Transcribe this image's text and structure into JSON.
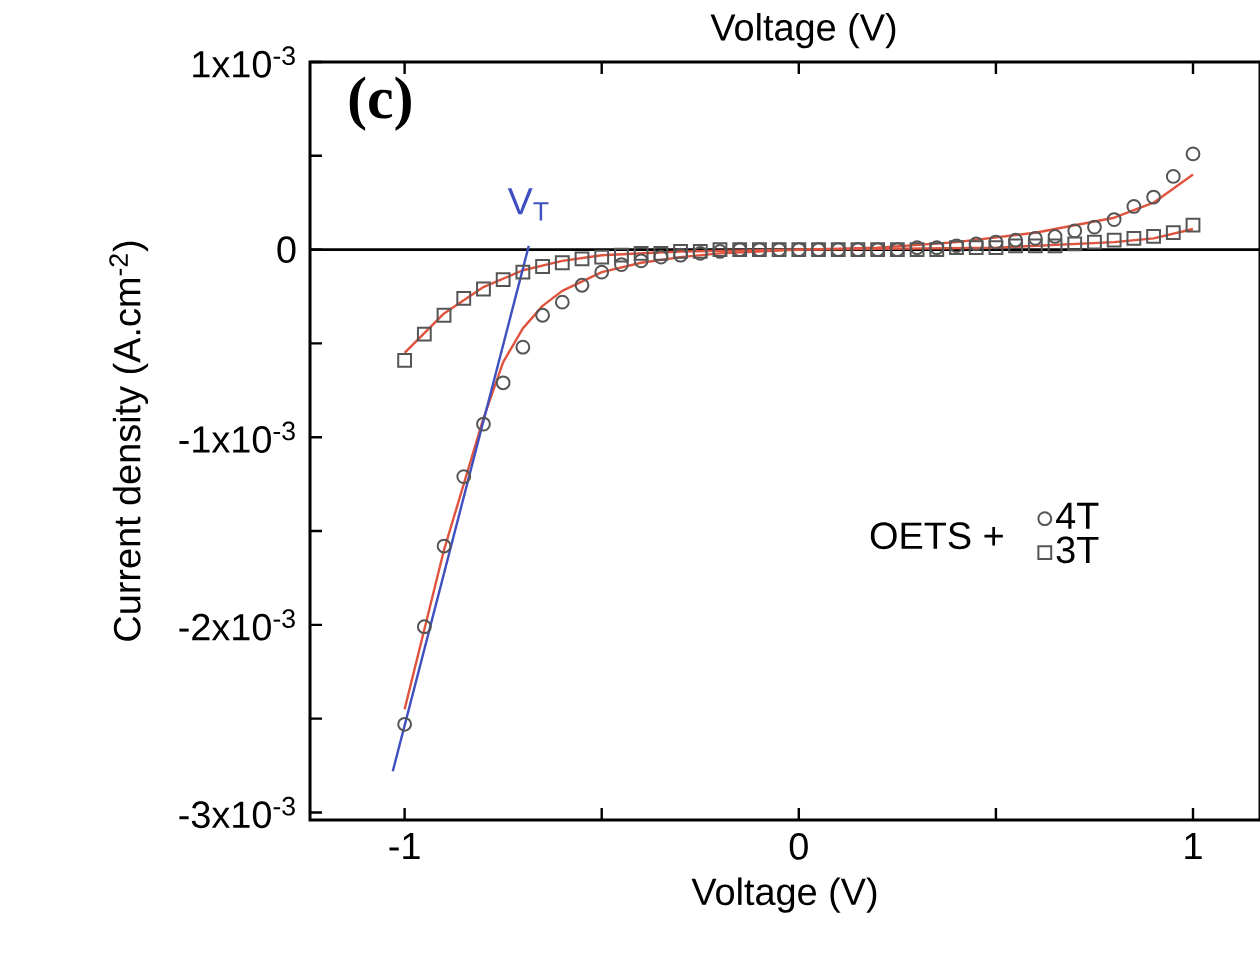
{
  "chart_data": {
    "type": "scatter",
    "xlabel": "Voltage (V)",
    "ylabel": "Current density (A.cm$^{-2}$)",
    "legend_title": "OETS +",
    "xlim": [
      -1.24,
      1.17
    ],
    "ylim": [
      -0.00304,
      0.001
    ],
    "xticks": [
      -1,
      {
        "value": -0.5,
        "label": null
      },
      0,
      {
        "value": 0.5,
        "label": null
      },
      1
    ],
    "yticks": [
      {
        "value": -0.003,
        "label": "-3x10$^{-3}$"
      },
      {
        "value": -0.0025,
        "label": null
      },
      {
        "value": -0.002,
        "label": "-2x10$^{-3}$"
      },
      {
        "value": -0.0015,
        "label": null
      },
      {
        "value": -0.001,
        "label": "-1x10$^{-3}$"
      },
      {
        "value": -0.0005,
        "label": null
      },
      0,
      {
        "value": 0.0005,
        "label": null
      },
      {
        "value": 0.001,
        "label": "1x10$^{-3}$"
      }
    ],
    "legend": "right",
    "grid": false,
    "ref_lines": [
      {
        "axis": "y",
        "value": 0,
        "color": "#000000"
      }
    ],
    "annotations": [
      "(c)",
      "Voltage (V)",
      {
        "text": "V$_{T}$",
        "x": -0.685,
        "y": 0
      }
    ],
    "series": [
      {
        "name": "4T",
        "marker": "circle",
        "color": "#555555",
        "x": [
          -1.0,
          -0.95,
          -0.9,
          -0.85,
          -0.8,
          -0.75,
          -0.7,
          -0.65,
          -0.6,
          -0.55,
          -0.5,
          -0.45,
          -0.4,
          -0.35,
          -0.3,
          -0.25,
          -0.2,
          -0.15,
          -0.1,
          -0.05,
          0.0,
          0.05,
          0.1,
          0.15,
          0.2,
          0.25,
          0.3,
          0.35,
          0.4,
          0.45,
          0.5,
          0.55,
          0.6,
          0.65,
          0.7,
          0.75,
          0.8,
          0.85,
          0.9,
          0.95,
          1.0
        ],
        "values": [
          -0.00253,
          -0.00201,
          -0.00158,
          -0.00121,
          -0.00093,
          -0.00071,
          -0.00052,
          -0.00035,
          -0.00028,
          -0.00019,
          -0.00012,
          -8e-05,
          -6e-05,
          -4e-05,
          -3e-05,
          -2e-05,
          -1e-05,
          0,
          0,
          0,
          0,
          0,
          0,
          0,
          0,
          0,
          1e-05,
          1e-05,
          2e-05,
          3e-05,
          4e-05,
          5e-05,
          6e-05,
          7e-05,
          0.0001,
          0.00012,
          0.00016,
          0.00023,
          0.00028,
          0.00039,
          0.00051
        ]
      },
      {
        "name": "3T",
        "marker": "square",
        "color": "#555555",
        "x": [
          -1.0,
          -0.95,
          -0.9,
          -0.85,
          -0.8,
          -0.75,
          -0.7,
          -0.65,
          -0.6,
          -0.55,
          -0.5,
          -0.45,
          -0.4,
          -0.35,
          -0.3,
          -0.25,
          -0.2,
          -0.15,
          -0.1,
          -0.05,
          0.0,
          0.05,
          0.1,
          0.15,
          0.2,
          0.25,
          0.3,
          0.35,
          0.4,
          0.45,
          0.5,
          0.55,
          0.6,
          0.65,
          0.7,
          0.75,
          0.8,
          0.85,
          0.9,
          0.95,
          1.0
        ],
        "values": [
          -0.00059,
          -0.00045,
          -0.00035,
          -0.00026,
          -0.00021,
          -0.00016,
          -0.00012,
          -9e-05,
          -7e-05,
          -5e-05,
          -4e-05,
          -3e-05,
          -2e-05,
          -2e-05,
          -1e-05,
          -1e-05,
          0,
          0,
          0,
          0,
          0,
          0,
          0,
          0,
          0,
          0,
          0,
          0,
          1e-05,
          1e-05,
          1e-05,
          2e-05,
          2e-05,
          2e-05,
          3e-05,
          4e-05,
          5e-05,
          6e-05,
          7e-05,
          9e-05,
          0.00013
        ]
      },
      {
        "type": "line",
        "marker": "none",
        "color": "#e0533f",
        "x": [
          -1.0,
          -0.9,
          -0.8,
          -0.75,
          -0.7,
          -0.65,
          -0.6,
          -0.5,
          -0.4,
          -0.3,
          -0.2,
          0.0,
          0.2,
          0.4,
          0.6,
          0.8,
          0.9,
          1.0
        ],
        "values": [
          -0.00245,
          -0.0016,
          -0.0009,
          -0.0006,
          -0.00042,
          -0.0003,
          -0.00022,
          -0.00012,
          -7e-05,
          -4e-05,
          -2e-05,
          0,
          1e-05,
          4e-05,
          9e-05,
          0.00017,
          0.00025,
          0.0004
        ]
      },
      {
        "type": "line",
        "marker": "none",
        "color": "#e0533f",
        "x": [
          -1.0,
          -0.9,
          -0.8,
          -0.7,
          -0.6,
          -0.5,
          -0.3,
          0.0,
          0.5,
          0.8,
          0.9,
          1.0
        ],
        "values": [
          -0.00055,
          -0.00034,
          -0.0002,
          -0.00011,
          -6e-05,
          -3e-05,
          -1e-05,
          0,
          1e-05,
          4e-05,
          6e-05,
          0.00011
        ]
      },
      {
        "type": "line",
        "marker": "none",
        "color": "#3f4fbf",
        "x": [
          -1.03,
          -0.685
        ],
        "values": [
          -0.00278,
          2e-05
        ]
      }
    ]
  }
}
